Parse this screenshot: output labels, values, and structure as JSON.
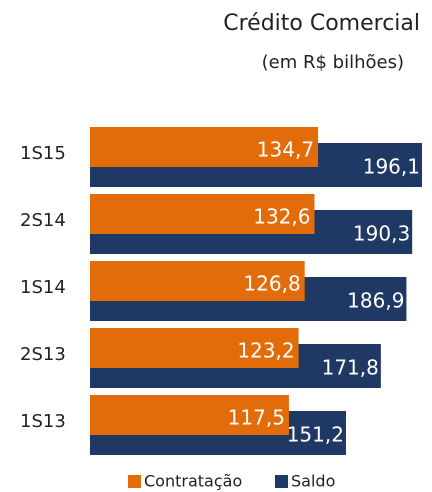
{
  "chart_data": {
    "type": "bar",
    "orientation": "horizontal",
    "title": "Crédito Comercial",
    "subtitle": "(em R$ bilhões)",
    "categories": [
      "1S15",
      "2S14",
      "1S14",
      "2S13",
      "1S13"
    ],
    "series": [
      {
        "name": "Contratação",
        "color": "#e36c0a",
        "values": [
          134.7,
          132.6,
          126.8,
          123.2,
          117.5
        ],
        "value_labels": [
          "134,7",
          "132,6",
          "126,8",
          "123,2",
          "117,5"
        ]
      },
      {
        "name": "Saldo",
        "color": "#1f3864",
        "values": [
          196.1,
          190.3,
          186.9,
          171.8,
          151.2
        ],
        "value_labels": [
          "196,1",
          "190,3",
          "186,9",
          "171,8",
          "151,2"
        ]
      }
    ],
    "legend": "bottom"
  }
}
